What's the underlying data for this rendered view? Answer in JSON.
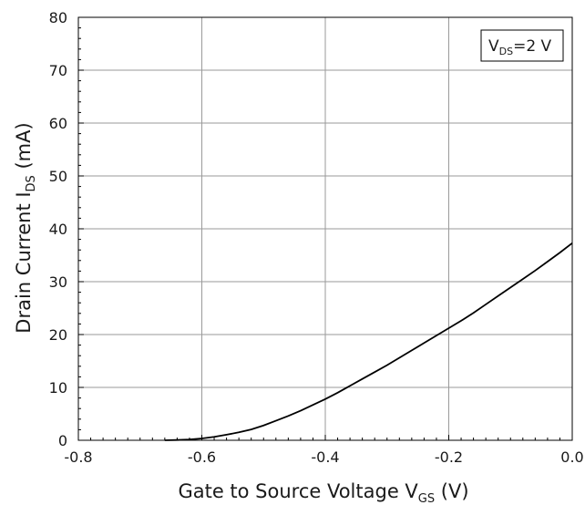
{
  "chart_data": {
    "type": "line",
    "xlabel": {
      "main": "Gate to Source Voltage V",
      "sub": "GS",
      "unit": " (V)"
    },
    "ylabel": {
      "main": "Drain Current I",
      "sub": "DS",
      "unit": " (mA)"
    },
    "annotation": {
      "main": "V",
      "sub": "DS",
      "rest": "=2 V"
    },
    "xlim": [
      -0.8,
      0.0
    ],
    "ylim": [
      0,
      80
    ],
    "x_ticks": [
      -0.8,
      -0.6,
      -0.4,
      -0.2,
      0.0
    ],
    "x_tick_labels": [
      "-0.8",
      "-0.6",
      "-0.4",
      "-0.2",
      "0.0"
    ],
    "y_ticks": [
      0,
      10,
      20,
      30,
      40,
      50,
      60,
      70,
      80
    ],
    "y_tick_labels": [
      "0",
      "10",
      "20",
      "30",
      "40",
      "50",
      "60",
      "70",
      "80"
    ],
    "grid": true,
    "series": [
      {
        "x": [
          -0.66,
          -0.64,
          -0.62,
          -0.6,
          -0.58,
          -0.56,
          -0.54,
          -0.52,
          -0.5,
          -0.48,
          -0.46,
          -0.44,
          -0.42,
          -0.4,
          -0.38,
          -0.36,
          -0.34,
          -0.32,
          -0.3,
          -0.28,
          -0.26,
          -0.24,
          -0.22,
          -0.2,
          -0.18,
          -0.16,
          -0.14,
          -0.12,
          -0.1,
          -0.08,
          -0.06,
          -0.04,
          -0.02,
          0.0
        ],
        "y": [
          0.0,
          0.05,
          0.15,
          0.35,
          0.65,
          1.05,
          1.5,
          2.05,
          2.8,
          3.7,
          4.6,
          5.6,
          6.7,
          7.8,
          9.0,
          10.3,
          11.6,
          12.9,
          14.2,
          15.6,
          17.0,
          18.4,
          19.8,
          21.2,
          22.6,
          24.1,
          25.7,
          27.3,
          28.9,
          30.5,
          32.1,
          33.8,
          35.5,
          37.3
        ],
        "color": "#000000"
      }
    ]
  }
}
